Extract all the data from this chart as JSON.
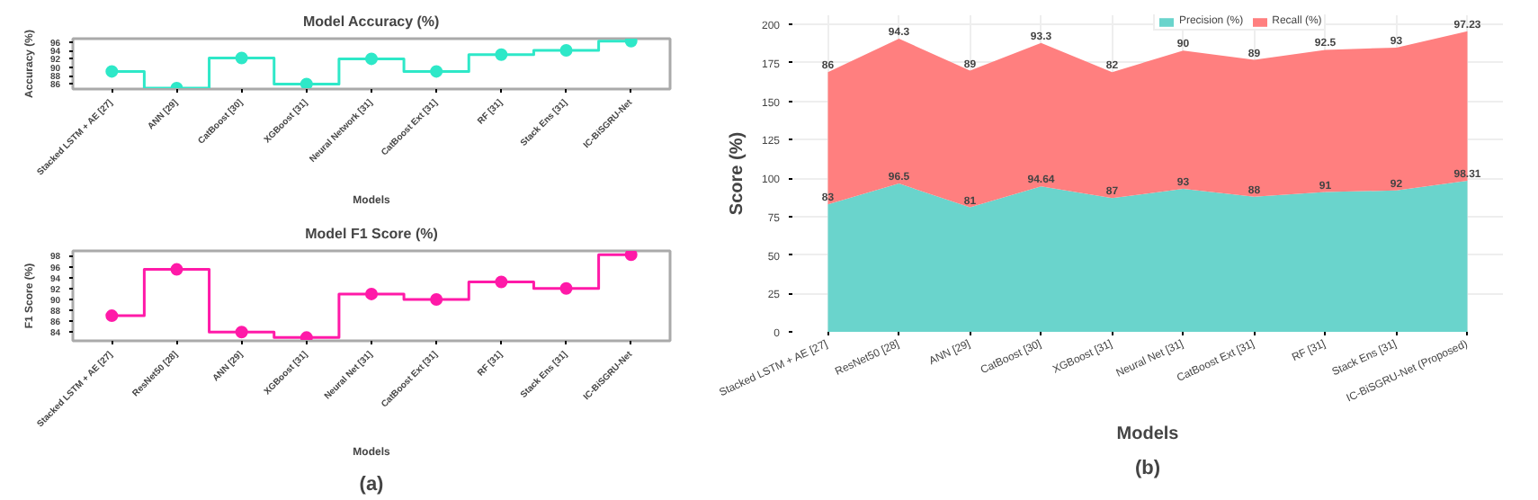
{
  "chart_data": [
    {
      "type": "step",
      "title": "Model Accuracy (%)",
      "xlabel": "Models",
      "ylabel": "Accuracy (%)",
      "categories": [
        "Stacked LSTM + AE [27]",
        "ANN [29]",
        "CatBoost [30]",
        "XGBoost [31]",
        "Neural Network [31]",
        "CatBoost Ext [31]",
        "RF [31]",
        "Stack Ens [31]",
        "IC-BiSGRU-Net"
      ],
      "series": [
        {
          "color": "#2ee8c8",
          "values": [
            89,
            85,
            92.2,
            86,
            92,
            89,
            93,
            94,
            96.2
          ]
        }
      ],
      "ylim": [
        84.8,
        96.8
      ],
      "yticks": [
        86,
        88,
        90,
        92,
        94,
        96
      ],
      "marker": "circle",
      "grid": false
    },
    {
      "type": "step",
      "title": "Model F1 Score (%)",
      "xlabel": "Models",
      "ylabel": "F1 Score (%)",
      "categories": [
        "Stacked LSTM + AE [27]",
        "ResNet50 [28]",
        "ANN [29]",
        "XGBoost [31]",
        "Neural Net [31]",
        "CatBoost Ext [31]",
        "RF [31]",
        "Stack Ens [31]",
        "IC-BiSGRU-Net"
      ],
      "series": [
        {
          "color": "#ff1aa8",
          "values": [
            87,
            95.5,
            84,
            83,
            91,
            90,
            93.2,
            92,
            98.2
          ]
        }
      ],
      "ylim": [
        82.4,
        98.9
      ],
      "yticks": [
        84,
        86,
        88,
        90,
        92,
        94,
        96,
        98
      ],
      "marker": "circle",
      "grid": false,
      "annotations": [
        "(a)"
      ]
    },
    {
      "type": "area",
      "xlabel": "Models",
      "ylabel": "Score (%)",
      "stacked": true,
      "data_labels": true,
      "legend": "top",
      "grid": true,
      "categories": [
        "Stacked LSTM + AE [27]",
        "ResNet50 [28]",
        "ANN [29]",
        "CatBoost [30]",
        "XGBoost [31]",
        "Neural Net [31]",
        "CatBoost Ext [31]",
        "RF [31]",
        "Stack Ens [31]",
        "IC-BiSGRU-Net (Proposed)"
      ],
      "series": [
        {
          "name": "Precision (%)",
          "color": "#6ad4cc",
          "values": [
            83,
            96.5,
            81,
            94.64,
            87,
            93,
            88,
            91,
            92,
            98.31
          ]
        },
        {
          "name": "Recall (%)",
          "color": "#ff7f7f",
          "values": [
            86,
            94.3,
            89,
            93.3,
            82,
            90,
            89,
            92.5,
            93,
            97.23
          ]
        }
      ],
      "ylim": [
        0,
        206
      ],
      "yticks": [
        0,
        25,
        50,
        75,
        100,
        125,
        150,
        175,
        200
      ],
      "annotations": [
        "(b)"
      ]
    }
  ]
}
